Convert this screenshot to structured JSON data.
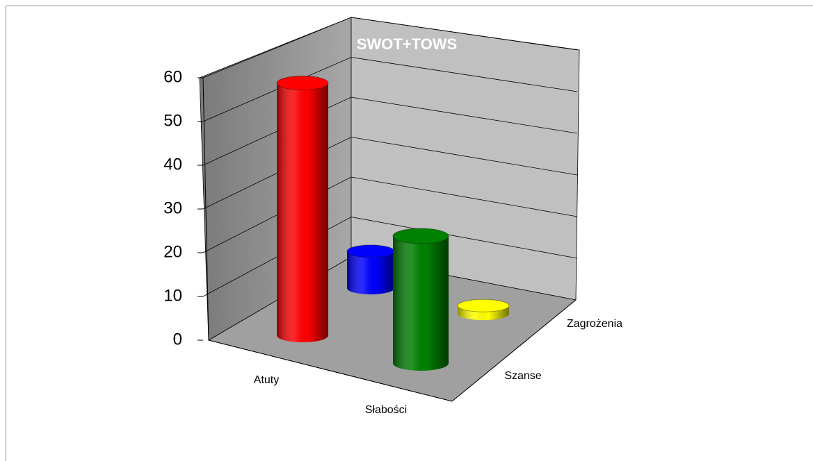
{
  "chart_data": {
    "type": "bar3d",
    "title": "SWOT+TOWS",
    "categories": [
      "Atuty",
      "Słabości"
    ],
    "series": [
      {
        "name": "Szanse",
        "values": [
          58,
          30
        ],
        "colors": [
          "#ff0000",
          "#008000"
        ]
      },
      {
        "name": "Zagrożenia",
        "values": [
          9,
          2
        ],
        "colors": [
          "#0000ff",
          "#ffff00"
        ]
      }
    ],
    "ylim": [
      0,
      60
    ],
    "yticks": [
      0,
      10,
      20,
      30,
      40,
      50,
      60
    ],
    "grid": true
  }
}
